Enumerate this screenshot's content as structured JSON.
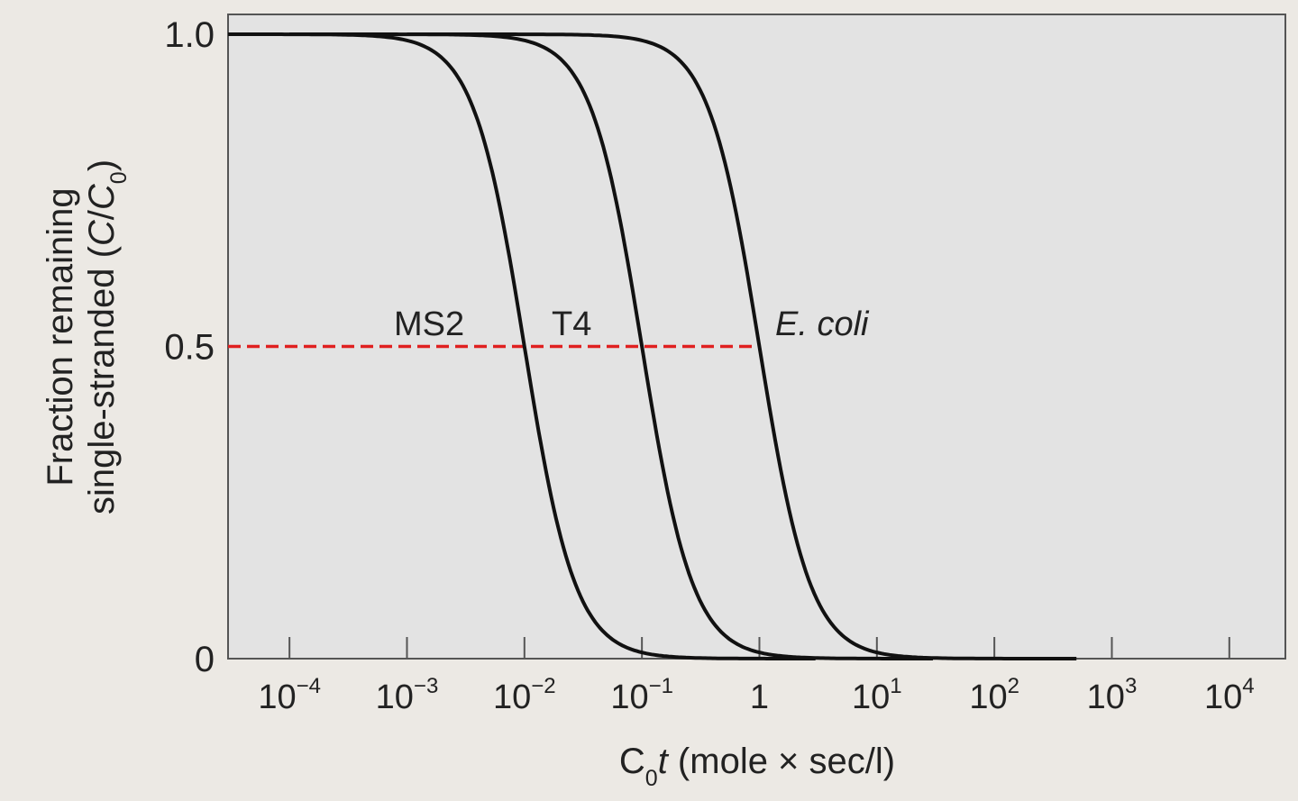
{
  "chart_data": {
    "type": "line",
    "title": "",
    "xlabel": {
      "parts": [
        {
          "text": "C",
          "style": "normal"
        },
        {
          "text": "0",
          "style": "sub"
        },
        {
          "text": "t",
          "style": "italic"
        },
        {
          "text": " (mole × sec/l)",
          "style": "normal"
        }
      ]
    },
    "ylabel": {
      "line1": "Fraction remaining",
      "line2_parts": [
        {
          "text": "single-stranded (",
          "style": "normal"
        },
        {
          "text": "C",
          "style": "italic"
        },
        {
          "text": "/",
          "style": "normal"
        },
        {
          "text": "C",
          "style": "italic"
        },
        {
          "text": "0",
          "style": "sub"
        },
        {
          "text": ")",
          "style": "normal"
        }
      ]
    },
    "x_scale": "log",
    "xlim": [
      3e-05,
      30000
    ],
    "ylim": [
      0,
      1.02
    ],
    "x_ticks": [
      {
        "value": 0.0001,
        "base": "10",
        "exp": "−4"
      },
      {
        "value": 0.001,
        "base": "10",
        "exp": "−3"
      },
      {
        "value": 0.01,
        "base": "10",
        "exp": "−2"
      },
      {
        "value": 0.1,
        "base": "10",
        "exp": "−1"
      },
      {
        "value": 1,
        "base": "1",
        "exp": ""
      },
      {
        "value": 10,
        "base": "10",
        "exp": "1"
      },
      {
        "value": 100,
        "base": "10",
        "exp": "2"
      },
      {
        "value": 1000,
        "base": "10",
        "exp": "3"
      },
      {
        "value": 10000,
        "base": "10",
        "exp": "4"
      }
    ],
    "y_ticks": [
      {
        "value": 0,
        "label": "0"
      },
      {
        "value": 0.5,
        "label": "0.5"
      },
      {
        "value": 1.0,
        "label": "1.0"
      }
    ],
    "series": [
      {
        "name": "MS2",
        "label_style": "normal",
        "x_half": 0.01,
        "x_start": 3e-05,
        "x_end": 3,
        "x": [
          3e-05,
          0.0001,
          0.001,
          0.003,
          0.01,
          0.03,
          0.1,
          1,
          3
        ],
        "y": [
          1.0,
          0.99,
          0.91,
          0.77,
          0.5,
          0.25,
          0.09,
          0.01,
          0.0
        ]
      },
      {
        "name": "T4",
        "label_style": "normal",
        "x_half": 0.1,
        "x_start": 0.0001,
        "x_end": 30,
        "x": [
          0.0001,
          0.001,
          0.01,
          0.03,
          0.1,
          0.3,
          1,
          10,
          30
        ],
        "y": [
          1.0,
          0.99,
          0.91,
          0.77,
          0.5,
          0.25,
          0.09,
          0.01,
          0.0
        ]
      },
      {
        "name": "E. coli",
        "label_style": "italic",
        "x_half": 1,
        "x_start": 0.001,
        "x_end": 500,
        "x": [
          0.001,
          0.01,
          0.1,
          0.3,
          1,
          3,
          10,
          100,
          500
        ],
        "y": [
          1.0,
          0.99,
          0.91,
          0.77,
          0.5,
          0.25,
          0.09,
          0.01,
          0.0
        ]
      }
    ],
    "reference_line": {
      "y": 0.5,
      "x_from": 3e-05,
      "x_to": 1,
      "color": "#e02020",
      "style": "dashed"
    },
    "grid": false,
    "legend": "none",
    "colors": {
      "curve": "#111111",
      "reference": "#e02020",
      "plot_background": "#e3e3e3",
      "page_background": "#ece9e4",
      "axis": "#555555"
    }
  }
}
